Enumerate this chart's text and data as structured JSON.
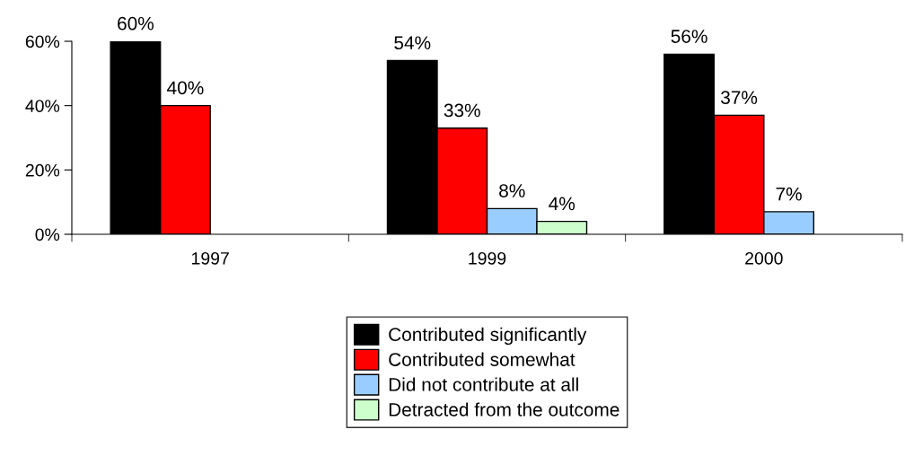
{
  "chart_data": {
    "type": "bar",
    "categories": [
      "1997",
      "1999",
      "2000"
    ],
    "series": [
      {
        "name": "Contributed significantly",
        "color": "#000000",
        "values": [
          60,
          54,
          56
        ]
      },
      {
        "name": "Contributed somewhat",
        "color": "#ff0000",
        "values": [
          40,
          33,
          37
        ]
      },
      {
        "name": "Did not contribute at all",
        "color": "#99ccff",
        "values": [
          null,
          8,
          7
        ]
      },
      {
        "name": "Detracted from the outcome",
        "color": "#ccffcc",
        "values": [
          null,
          4,
          null
        ]
      }
    ],
    "ylim": [
      0,
      60
    ],
    "yticks": [
      {
        "value": 0,
        "label": "0%"
      },
      {
        "value": 20,
        "label": "20%"
      },
      {
        "value": 40,
        "label": "40%"
      },
      {
        "value": 60,
        "label": "60%"
      }
    ],
    "value_labels": [
      [
        "60%",
        "54%",
        "56%"
      ],
      [
        "40%",
        "33%",
        "37%"
      ],
      [
        null,
        "8%",
        "7%"
      ],
      [
        null,
        "4%",
        null
      ]
    ],
    "grid": false,
    "legend": "bottom"
  }
}
